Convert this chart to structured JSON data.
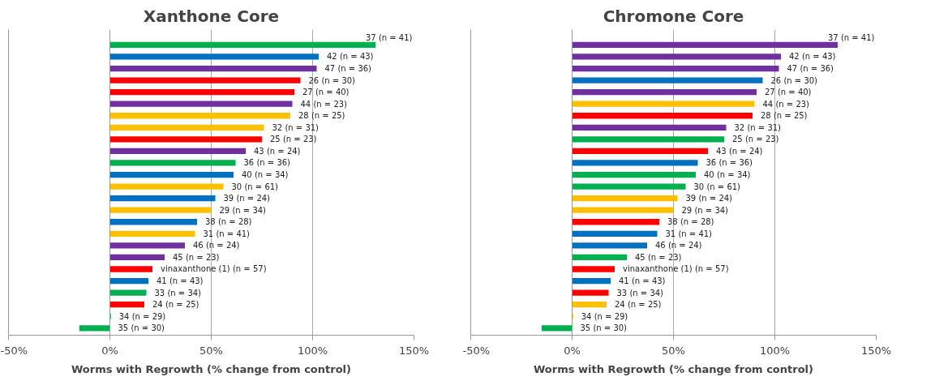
{
  "chart_data": [
    {
      "type": "bar",
      "orientation": "horizontal",
      "title": "Xanthone Core",
      "xlabel": "Worms with Regrowth (% change from control)",
      "categories": [
        "37 (n = 41)",
        "42 (n = 43)",
        "47 (n = 36)",
        "26 (n = 30)",
        "27 (n = 40)",
        "44 (n = 23)",
        "28 (n = 25)",
        "32 (n = 31)",
        "25 (n = 23)",
        "43 (n = 24)",
        "36 (n = 36)",
        "40 (n = 34)",
        "30 (n = 61)",
        "39 (n = 24)",
        "29 (n = 34)",
        "38 (n = 28)",
        "31 (n = 41)",
        "46 (n = 24)",
        "45 (n = 23)",
        "vinaxanthone (1) (n = 57)",
        "41 (n = 43)",
        "33 (n = 34)",
        "24 (n = 25)",
        "34 (n = 29)",
        "35 (n = 30)"
      ],
      "values": [
        131,
        103,
        102,
        94,
        91,
        90,
        89,
        76,
        75,
        67,
        62,
        61,
        56,
        52,
        50,
        43,
        42,
        37,
        27,
        21,
        19,
        18,
        17,
        0.5,
        -15
      ],
      "colors": [
        "#00b050",
        "#0070c0",
        "#7030a0",
        "#ff0000",
        "#ff0000",
        "#7030a0",
        "#ffc000",
        "#ffc000",
        "#ff0000",
        "#7030a0",
        "#00b050",
        "#0070c0",
        "#ffc000",
        "#0070c0",
        "#ffc000",
        "#0070c0",
        "#ffc000",
        "#7030a0",
        "#7030a0",
        "#ff0000",
        "#0070c0",
        "#00b050",
        "#ff0000",
        "#00b0a0",
        "#00b050"
      ],
      "xlim": [
        -50,
        150
      ],
      "xticks": [
        {
          "value": -50,
          "label": "-50%"
        },
        {
          "value": 0,
          "label": "0%"
        },
        {
          "value": 50,
          "label": "50%"
        },
        {
          "value": 100,
          "label": "100%"
        },
        {
          "value": 150,
          "label": "150%"
        }
      ],
      "grid": "x",
      "tick_labels": "x"
    },
    {
      "type": "bar",
      "orientation": "horizontal",
      "title": "Chromone Core",
      "xlabel": "Worms with Regrowth (% change from control)",
      "categories": [
        "37 (n = 41)",
        "42 (n = 43)",
        "47 (n = 36)",
        "26 (n = 30)",
        "27 (n = 40)",
        "44 (n = 23)",
        "28 (n = 25)",
        "32 (n = 31)",
        "25 (n = 23)",
        "43 (n = 24)",
        "36 (n = 36)",
        "40 (n = 34)",
        "30 (n = 61)",
        "39 (n = 24)",
        "29 (n = 34)",
        "38 (n = 28)",
        "31 (n = 41)",
        "46 (n = 24)",
        "45 (n = 23)",
        "vinaxanthone (1) (n = 57)",
        "41 (n = 43)",
        "33 (n = 34)",
        "24 (n = 25)",
        "34 (n = 29)",
        "35 (n = 30)"
      ],
      "values": [
        131,
        103,
        102,
        94,
        91,
        90,
        89,
        76,
        75,
        67,
        62,
        61,
        56,
        52,
        50,
        43,
        42,
        37,
        27,
        21,
        19,
        18,
        17,
        0.5,
        -15
      ],
      "colors": [
        "#7030a0",
        "#7030a0",
        "#7030a0",
        "#0070c0",
        "#7030a0",
        "#ffc000",
        "#ff0000",
        "#7030a0",
        "#00b050",
        "#ff0000",
        "#0070c0",
        "#00b050",
        "#00b050",
        "#ffc000",
        "#ffc000",
        "#ff0000",
        "#0070c0",
        "#0070c0",
        "#00b050",
        "#ff0000",
        "#0070c0",
        "#ff0000",
        "#ffc000",
        "#ffc000",
        "#00b050"
      ],
      "xlim": [
        -50,
        150
      ],
      "xticks": [
        {
          "value": -50,
          "label": "-50%"
        },
        {
          "value": 0,
          "label": "0%"
        },
        {
          "value": 50,
          "label": "50%"
        },
        {
          "value": 100,
          "label": "100%"
        },
        {
          "value": 150,
          "label": "150%"
        }
      ],
      "grid": "x",
      "tick_labels": "x"
    }
  ]
}
